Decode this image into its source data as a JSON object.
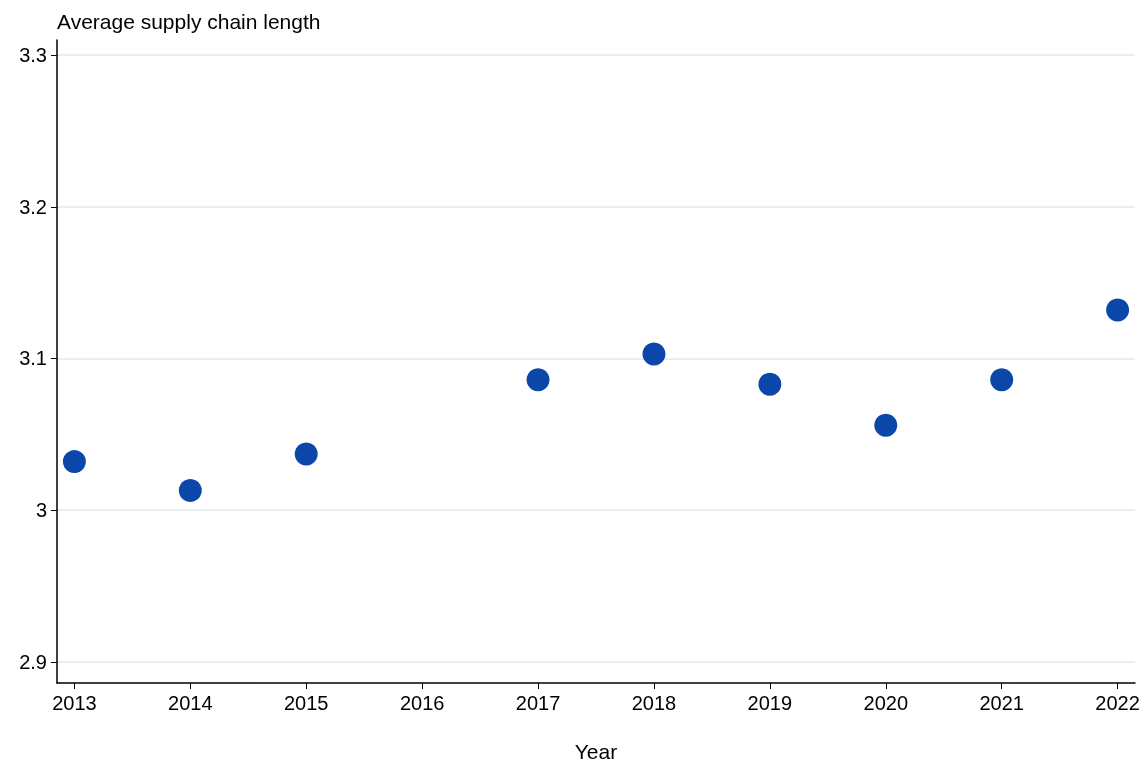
{
  "chart_data": {
    "type": "scatter",
    "ylabel": "Average supply chain length",
    "xlabel": "Year",
    "x": [
      2013,
      2014,
      2015,
      2017,
      2018,
      2019,
      2020,
      2021,
      2022
    ],
    "series": [
      {
        "color": "#0a47a9",
        "values": [
          3.032,
          3.013,
          3.037,
          3.086,
          3.103,
          3.083,
          3.056,
          3.086,
          3.132
        ]
      }
    ],
    "xlim": [
      2012.85,
      2022.15
    ],
    "xticks": [
      2013,
      2014,
      2015,
      2016,
      2017,
      2018,
      2019,
      2020,
      2021,
      2022
    ],
    "ylim": [
      2.886,
      3.31
    ],
    "yticks": [
      2.9,
      3,
      3.1,
      3.2,
      3.3
    ],
    "grid": "y",
    "marker": "circle"
  }
}
